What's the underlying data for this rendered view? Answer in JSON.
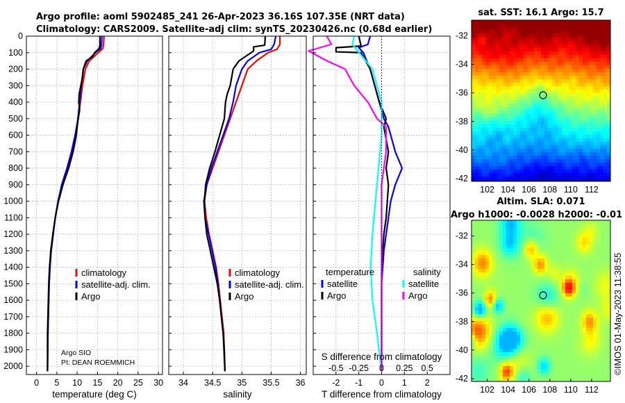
{
  "header": {
    "line1": "Argo profile: aoml 5902485_241 26-Apr-2023 36.16S 107.35E (NRT data)",
    "line2": "Climatology: CARS2009. Satellite-adj clim: synTS_20230426.nc (0.68d earlier)"
  },
  "credit": {
    "line1": "Argo SIO",
    "line2": "PI: DEAN ROEMMICH"
  },
  "stamp": "©IMOS 01-May-2023 11:38:55",
  "chart_data": [
    {
      "id": "temperature",
      "type": "line",
      "xlabel": "temperature (deg C)",
      "ylabel": "",
      "xlim": [
        -2.5,
        31
      ],
      "ylim": [
        2050,
        0
      ],
      "xticks": [
        0,
        5,
        10,
        15,
        20,
        25,
        30
      ],
      "xtick_labels": [
        "0",
        "5",
        "10",
        "15",
        "20",
        "25",
        "30"
      ],
      "yticks": [
        0,
        100,
        200,
        300,
        400,
        500,
        600,
        700,
        800,
        900,
        1000,
        1100,
        1200,
        1300,
        1400,
        1500,
        1600,
        1700,
        1800,
        1900,
        2000
      ],
      "legend": [
        "climatology",
        "satellite-adj. clim.",
        "Argo"
      ],
      "legend_position": "lower-right",
      "series": [
        {
          "name": "climatology",
          "color": "#ff0000",
          "x": [
            16.6,
            16.5,
            16.3,
            15.2,
            13.0,
            12.0,
            11.3,
            10.8,
            10.3,
            9.6,
            8.7,
            7.6,
            6.3,
            5.3,
            4.6,
            4.1,
            3.6,
            3.3,
            3.1,
            3.0,
            2.9,
            2.8,
            2.7
          ],
          "y": [
            0,
            50,
            75,
            100,
            150,
            200,
            300,
            400,
            500,
            600,
            700,
            800,
            900,
            1000,
            1100,
            1200,
            1300,
            1400,
            1500,
            1600,
            1700,
            1800,
            2030
          ]
        },
        {
          "name": "satellite-adj. clim.",
          "color": "#0000ff",
          "x": [
            16.1,
            16.0,
            15.8,
            14.5,
            12.5,
            11.5,
            11.0,
            10.6,
            10.2,
            9.5,
            8.6,
            7.5,
            6.2,
            5.3,
            4.6,
            4.1,
            3.6,
            3.3,
            3.1,
            3.0,
            2.9,
            2.8,
            2.7
          ],
          "y": [
            0,
            50,
            75,
            100,
            150,
            200,
            300,
            400,
            500,
            600,
            700,
            800,
            900,
            1000,
            1100,
            1200,
            1300,
            1400,
            1500,
            1600,
            1700,
            1800,
            2030
          ]
        },
        {
          "name": "Argo",
          "color": "#000000",
          "x": [
            15.6,
            15.6,
            15.4,
            14.3,
            13.8,
            12.2,
            11.5,
            11.3,
            10.9,
            10.5,
            10.4,
            10.6,
            10.2,
            9.8,
            9.0,
            7.9,
            6.5,
            5.4,
            4.6,
            4.0,
            3.5,
            3.2,
            3.0,
            2.9,
            2.8,
            2.7,
            2.7
          ],
          "y": [
            0,
            55,
            75,
            100,
            125,
            150,
            200,
            250,
            300,
            350,
            400,
            450,
            500,
            600,
            700,
            800,
            900,
            1000,
            1100,
            1200,
            1300,
            1400,
            1500,
            1600,
            1700,
            1800,
            2030
          ]
        }
      ]
    },
    {
      "id": "salinity",
      "type": "line",
      "xlabel": "salinity",
      "ylabel": "",
      "xlim": [
        33.75,
        36.1
      ],
      "ylim": [
        2050,
        0
      ],
      "xticks": [
        34,
        34.5,
        35,
        35.5,
        36
      ],
      "xtick_labels": [
        "34",
        "34.5",
        "35",
        "35.5",
        "36"
      ],
      "yticks": [
        0,
        100,
        200,
        300,
        400,
        500,
        600,
        700,
        800,
        900,
        1000,
        1100,
        1200,
        1300,
        1400,
        1500,
        1600,
        1700,
        1800,
        1900,
        2000
      ],
      "legend": [
        "climatology",
        "satellite-adj. clim.",
        "Argo"
      ],
      "legend_position": "lower-right",
      "series": [
        {
          "name": "climatology",
          "color": "#ff0000",
          "x": [
            35.65,
            35.65,
            35.6,
            35.45,
            35.25,
            35.1,
            35.0,
            34.9,
            34.8,
            34.7,
            34.6,
            34.5,
            34.4,
            34.36,
            34.39,
            34.44,
            34.5,
            34.56,
            34.6,
            34.63,
            34.66,
            34.69,
            34.71
          ],
          "y": [
            0,
            50,
            80,
            100,
            150,
            200,
            300,
            400,
            500,
            600,
            700,
            800,
            900,
            1000,
            1100,
            1200,
            1300,
            1400,
            1500,
            1600,
            1700,
            1800,
            2030
          ]
        },
        {
          "name": "satellite-adj. clim.",
          "color": "#0000ff",
          "x": [
            35.58,
            35.55,
            35.5,
            35.3,
            35.1,
            35.0,
            34.9,
            34.85,
            34.78,
            34.68,
            34.58,
            34.48,
            34.4,
            34.35,
            34.37,
            34.43,
            34.49,
            34.55,
            34.59,
            34.62,
            34.65,
            34.68,
            34.71
          ],
          "y": [
            0,
            50,
            80,
            100,
            150,
            200,
            300,
            400,
            500,
            600,
            700,
            800,
            900,
            1000,
            1100,
            1200,
            1300,
            1400,
            1500,
            1600,
            1700,
            1800,
            2030
          ]
        },
        {
          "name": "Argo",
          "color": "#000000",
          "x": [
            35.4,
            35.39,
            35.2,
            35.2,
            34.95,
            34.85,
            34.8,
            34.75,
            34.72,
            34.7,
            34.62,
            34.54,
            34.45,
            34.38,
            34.36,
            34.37,
            34.4,
            34.46,
            34.52,
            34.58,
            34.62,
            34.65,
            34.68,
            34.7,
            34.71
          ],
          "y": [
            0,
            55,
            65,
            90,
            150,
            200,
            300,
            350,
            400,
            500,
            600,
            700,
            800,
            900,
            1000,
            1100,
            1200,
            1300,
            1400,
            1500,
            1600,
            1700,
            1800,
            1900,
            2030
          ]
        }
      ]
    },
    {
      "id": "difference",
      "type": "line",
      "xlabel": "T difference from climatology",
      "xlabel_top": "S difference from climatology",
      "xlim": [
        -3,
        3
      ],
      "ylim": [
        2050,
        0
      ],
      "xticks": [
        -2,
        -1,
        0,
        1,
        2
      ],
      "xtick_labels": [
        "-2",
        "-1",
        "0",
        "1",
        "2"
      ],
      "xticks_s": [
        -0.5,
        -0.25,
        0,
        0.25,
        0.5
      ],
      "xtick_s_labels": [
        "-0.5",
        "-0.25",
        "0",
        "0.25",
        "0.5"
      ],
      "yticks": [
        0,
        100,
        200,
        300,
        400,
        500,
        600,
        700,
        800,
        900,
        1000,
        1100,
        1200,
        1300,
        1400,
        1500,
        1600,
        1700,
        1800,
        1900,
        2000
      ],
      "legend_groups": [
        {
          "title": "temperature",
          "items": [
            "satellite",
            "Argo"
          ]
        },
        {
          "title": "salinity",
          "items": [
            "satellite",
            "Argo"
          ]
        }
      ],
      "series": [
        {
          "name": "temperature satellite",
          "color": "#0000ff",
          "x": [
            -0.5,
            -0.6,
            -1.0,
            -0.8,
            -0.5,
            -0.3,
            -0.1,
            0.1,
            0.3,
            0.4,
            0.6,
            0.9,
            0.6,
            0.4,
            0.3,
            0.2,
            0.1,
            0.05,
            0,
            0,
            0
          ],
          "y": [
            0,
            50,
            70,
            100,
            200,
            300,
            400,
            500,
            550,
            600,
            700,
            800,
            900,
            1000,
            1100,
            1200,
            1300,
            1400,
            1500,
            1700,
            2030
          ]
        },
        {
          "name": "temperature Argo",
          "color": "#000000",
          "x": [
            -1.0,
            -0.9,
            -2.0,
            -2.0,
            -0.9,
            -0.5,
            -0.1,
            0.2,
            0.1,
            0.3,
            0.2,
            0.3,
            0.25,
            0.2,
            0.1,
            0.05,
            0,
            0,
            0
          ],
          "y": [
            0,
            60,
            70,
            95,
            100,
            200,
            400,
            500,
            550,
            700,
            800,
            900,
            1000,
            1100,
            1200,
            1300,
            1400,
            1700,
            2030
          ]
        },
        {
          "name": "salinity satellite",
          "color": "#00ffff",
          "x": [
            -0.3,
            -0.32,
            -0.1,
            0,
            0,
            -0.05,
            -0.1,
            -0.12,
            -0.1,
            -0.05,
            0
          ],
          "y": [
            0,
            50,
            200,
            400,
            600,
            900,
            1200,
            1400,
            1600,
            1800,
            2030
          ]
        },
        {
          "name": "salinity Argo",
          "color": "#ff00ff",
          "x": [
            -0.6,
            -0.55,
            -0.8,
            -0.6,
            -0.4,
            -0.3,
            -0.15,
            -0.05,
            0.05,
            0.05,
            0,
            0,
            0
          ],
          "y": [
            0,
            50,
            90,
            150,
            200,
            300,
            400,
            500,
            550,
            700,
            900,
            1500,
            2030
          ]
        }
      ]
    },
    {
      "id": "sst_map",
      "type": "heatmap",
      "title": "sat. SST: 16.1 Argo: 15.7",
      "xlim": [
        100.5,
        113.8
      ],
      "ylim": [
        -42.2,
        -30.9
      ],
      "xticks": [
        102,
        104,
        106,
        108,
        110,
        112
      ],
      "xtick_labels": [
        "102",
        "104",
        "106",
        "108",
        "110",
        "112"
      ],
      "yticks": [
        -32,
        -34,
        -36,
        -38,
        -40,
        -42
      ],
      "ytick_labels": [
        "-32",
        "-34",
        "-36",
        "-38",
        "-40",
        "-42"
      ],
      "marker": {
        "lon": 107.35,
        "lat": -36.16
      },
      "colormap": "jet"
    },
    {
      "id": "sla_map",
      "type": "heatmap",
      "title_line1": "Altim. SLA: 0.071",
      "title_line2": "Argo h1000: -0.0028 h2000: -0.01",
      "xlim": [
        100.5,
        113.8
      ],
      "ylim": [
        -42.2,
        -30.9
      ],
      "xticks": [
        102,
        104,
        106,
        108,
        110,
        112
      ],
      "xtick_labels": [
        "102",
        "104",
        "106",
        "108",
        "110",
        "112"
      ],
      "yticks": [
        -32,
        -34,
        -36,
        -38,
        -40,
        -42
      ],
      "ytick_labels": [
        "-32",
        "-34",
        "-36",
        "-38",
        "-40",
        "-42"
      ],
      "marker": {
        "lon": 107.35,
        "lat": -36.16
      },
      "colormap": "jet"
    }
  ]
}
